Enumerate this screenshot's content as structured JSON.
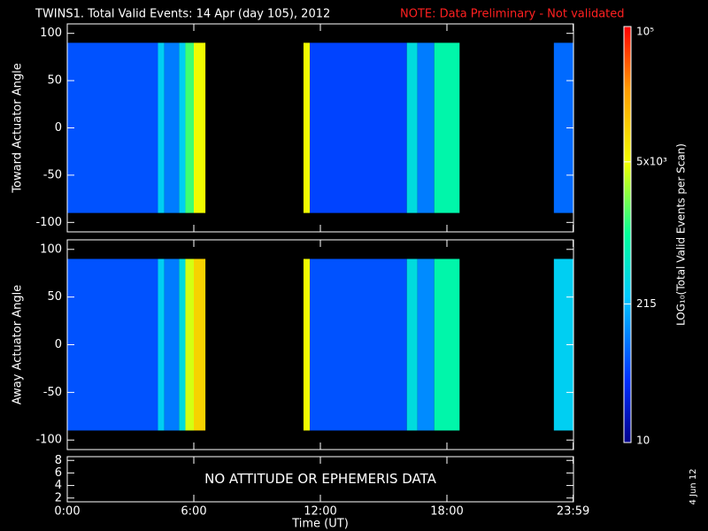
{
  "chart_data": {
    "type": "heatmap",
    "title": "TWINS1. Total Valid Events: 14 Apr (day 105), 2012",
    "note": "NOTE: Data Preliminary - Not validated",
    "note_color": "#ff2020",
    "xlabel": "Time (UT)",
    "xlim": [
      0,
      24
    ],
    "xticks": [
      {
        "value": 0,
        "label": "0:00"
      },
      {
        "value": 6,
        "label": "6:00"
      },
      {
        "value": 12,
        "label": "12:00"
      },
      {
        "value": 18,
        "label": "18:00"
      },
      {
        "value": 23.983,
        "label": "23:59"
      }
    ],
    "bins": [
      0,
      4.3,
      4.6,
      5.3,
      5.6,
      6.0,
      6.55,
      11.2,
      11.5,
      16.1,
      16.6,
      17.4,
      18.6,
      23.07,
      24
    ],
    "panels": [
      {
        "ylabel": "Toward Actuator Angle",
        "ylim": [
          -110,
          110
        ],
        "yticks": [
          -100,
          -50,
          0,
          50,
          100
        ],
        "ybins": [
          -90,
          90
        ],
        "values": [
          60,
          300,
          100,
          300,
          1500,
          5000,
          null,
          5000,
          50,
          400,
          100,
          800,
          null,
          80
        ]
      },
      {
        "ylabel": "Away Actuator Angle",
        "ylim": [
          -110,
          110
        ],
        "yticks": [
          -100,
          -50,
          0,
          50,
          100
        ],
        "ybins": [
          -90,
          90
        ],
        "values": [
          60,
          300,
          100,
          400,
          4000,
          10000,
          null,
          5000,
          60,
          400,
          120,
          800,
          null,
          300
        ]
      },
      {
        "ylim": [
          1.4,
          8.6
        ],
        "yticks": [
          2,
          4,
          6,
          8
        ],
        "text": "NO ATTITUDE OR EPHEMERIS DATA"
      }
    ],
    "colorbar": {
      "label": "LOG₁₀(Total Valid Events per Scan)",
      "lim": [
        10,
        100000
      ],
      "log": true,
      "ticks": [
        {
          "value": 10,
          "label": "10"
        },
        {
          "value": 215,
          "label": "215"
        },
        {
          "value": 5000,
          "label": "5x10³"
        },
        {
          "value": 100000,
          "label": "10⁵"
        }
      ]
    },
    "date": "4 Jun 12"
  }
}
